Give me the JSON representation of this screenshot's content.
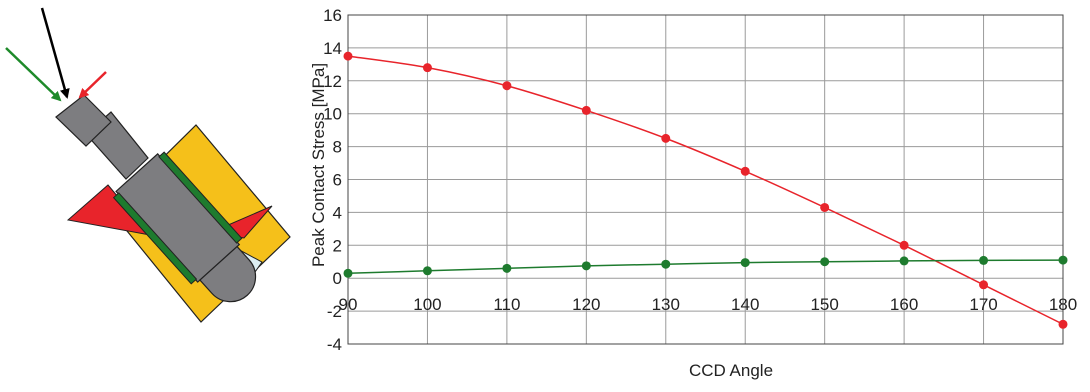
{
  "chart_data": {
    "type": "line",
    "xlabel": "CCD Angle",
    "ylabel": "Peak Contact Stress [MPa]",
    "x": [
      90,
      100,
      110,
      120,
      130,
      140,
      150,
      160,
      170,
      180
    ],
    "xlim": [
      90,
      180
    ],
    "ylim": [
      -4,
      16
    ],
    "xticks": [
      "90",
      "100",
      "110",
      "120",
      "130",
      "140",
      "150",
      "160",
      "170",
      "180"
    ],
    "yticks": [
      "-4",
      "-2",
      "0",
      "2",
      "4",
      "6",
      "8",
      "10",
      "12",
      "14",
      "16"
    ],
    "grid": true,
    "series": [
      {
        "color": "#e8242b",
        "values": [
          13.5,
          12.8,
          11.7,
          10.2,
          8.5,
          6.5,
          4.3,
          2.0,
          -0.4,
          -2.8
        ]
      },
      {
        "color": "#1e7b2e",
        "values": [
          0.3,
          0.45,
          0.6,
          0.75,
          0.85,
          0.95,
          1.0,
          1.05,
          1.08,
          1.1
        ]
      }
    ]
  },
  "diagram": {
    "colors": {
      "socket": "#f5c01a",
      "stem": "#7d7d80",
      "liner": "#1e7b2e",
      "wedge": "#e8242b",
      "cup": "#dceef2"
    },
    "arrows": [
      {
        "name": "green-load-arrow",
        "color": "#1e8a2a"
      },
      {
        "name": "black-load-arrow",
        "color": "#000000"
      },
      {
        "name": "red-load-arrow",
        "color": "#e8242b"
      }
    ]
  }
}
